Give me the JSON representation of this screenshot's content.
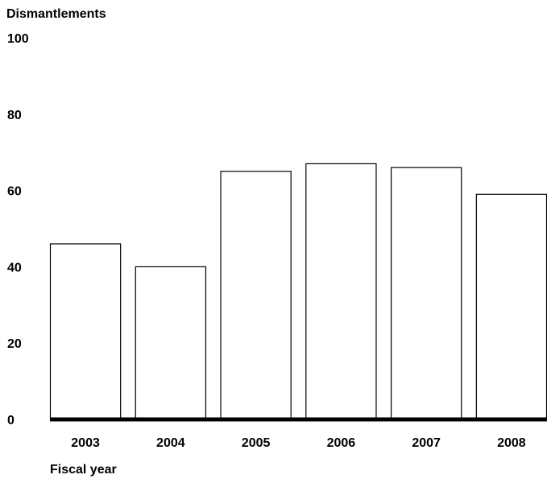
{
  "chart_data": {
    "type": "bar",
    "title": "",
    "ylabel": "Dismantlements",
    "xlabel": "Fiscal year",
    "categories": [
      "2003",
      "2004",
      "2005",
      "2006",
      "2007",
      "2008"
    ],
    "values": [
      46,
      40,
      65,
      67,
      66,
      59
    ],
    "ylim": [
      0,
      100
    ],
    "yticks": [
      0,
      20,
      40,
      60,
      80,
      100
    ],
    "grid": false,
    "legend": "none",
    "colors": {
      "bar_fill": "#ffffff",
      "bar_stroke": "#000000",
      "baseline": "#000000"
    }
  }
}
